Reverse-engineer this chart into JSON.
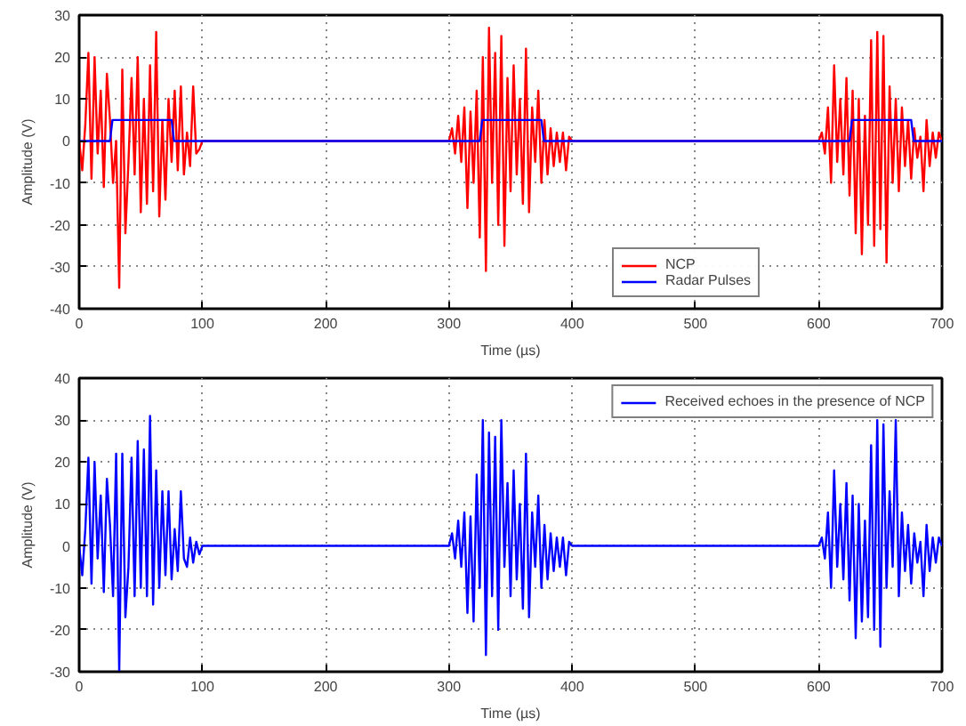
{
  "chart_data": [
    {
      "type": "line",
      "xlabel": "Time (µs)",
      "ylabel": "Amplitude (V)",
      "xlim": [
        0,
        700
      ],
      "ylim": [
        -40,
        30
      ],
      "xticks": [
        0,
        100,
        200,
        300,
        400,
        500,
        600,
        {
          "value": 700,
          "label": "700"
        }
      ],
      "yticks": [
        -40,
        -30,
        -20,
        -10,
        0,
        10,
        20,
        30
      ],
      "grid": true,
      "legend": "bottom right",
      "line_style": "solid",
      "marker": "none",
      "series": [
        {
          "name": "NCP",
          "color": "#ff0000",
          "x": [
            0,
            2.5,
            5,
            7.5,
            10,
            12.5,
            15,
            17.5,
            20,
            22.5,
            25,
            27.5,
            30,
            32.5,
            35,
            37.5,
            40,
            42.5,
            45,
            47.5,
            50,
            52.5,
            55,
            57.5,
            60,
            62.5,
            65,
            67.5,
            70,
            72.5,
            75,
            77.5,
            80,
            82.5,
            85,
            87.5,
            90,
            92.5,
            95,
            97.5,
            100,
            300,
            302.5,
            305,
            307.5,
            310,
            312.5,
            315,
            317.5,
            320,
            322.5,
            325,
            327.5,
            330,
            332.5,
            335,
            337.5,
            340,
            342.5,
            345,
            347.5,
            350,
            352.5,
            355,
            357.5,
            360,
            362.5,
            365,
            367.5,
            370,
            372.5,
            375,
            377.5,
            380,
            382.5,
            385,
            387.5,
            390,
            392.5,
            395,
            397.5,
            400,
            600,
            602.5,
            605,
            607.5,
            610,
            612.5,
            615,
            617.5,
            620,
            622.5,
            625,
            627.5,
            630,
            632.5,
            635,
            637.5,
            640,
            642.5,
            645,
            647.5,
            650,
            652.5,
            655,
            657.5,
            660,
            662.5,
            665,
            667.5,
            670,
            672.5,
            675,
            677.5,
            680,
            682.5,
            685,
            687.5,
            690,
            692.5,
            695,
            697.5,
            700
          ],
          "values": [
            0,
            -7,
            4,
            21,
            -9,
            20,
            -3,
            12,
            -11,
            16,
            5,
            -10,
            0,
            -35,
            17,
            -22,
            -5,
            15,
            -8,
            20,
            -17,
            10,
            -15,
            18,
            -12,
            26,
            -18,
            5,
            -14,
            10,
            -5,
            12,
            -7,
            13,
            -8,
            2,
            -6,
            13,
            -3,
            -2,
            0,
            0,
            3,
            -3,
            6,
            -5,
            8,
            -16,
            7,
            -10,
            12,
            -23,
            20,
            -31,
            27,
            -10,
            21,
            -20,
            25,
            -25,
            15,
            -12,
            18,
            -8,
            10,
            -15,
            22,
            -17,
            8,
            -5,
            12,
            -10,
            5,
            -8,
            3,
            -6,
            2,
            -5,
            2,
            -7,
            1,
            0,
            0,
            2,
            -3,
            8,
            -10,
            18,
            -5,
            10,
            -8,
            15,
            -13,
            12,
            -22,
            10,
            -27,
            6,
            -20,
            24,
            -25,
            26,
            -21,
            25,
            -29,
            13,
            -10,
            10,
            -12,
            8,
            -6,
            5,
            -9,
            3,
            -4,
            1,
            -12,
            5,
            -6,
            2,
            -4,
            2,
            0
          ]
        },
        {
          "name": "Radar Pulses",
          "color": "#0000ff",
          "x": [
            0,
            25,
            27,
            75,
            77,
            325,
            327,
            375,
            377,
            625,
            627,
            675,
            677,
            700
          ],
          "values": [
            0,
            0,
            5,
            5,
            0,
            0,
            5,
            5,
            0,
            0,
            5,
            5,
            0,
            0
          ]
        }
      ]
    },
    {
      "type": "line",
      "xlabel": "Time (µs)",
      "ylabel": "Amplitude (V)",
      "xlim": [
        0,
        700
      ],
      "ylim": [
        -30,
        40
      ],
      "xticks": [
        0,
        100,
        200,
        300,
        400,
        500,
        600,
        {
          "value": 700,
          "label": "700"
        }
      ],
      "yticks": [
        -30,
        -20,
        -10,
        0,
        10,
        20,
        30,
        40
      ],
      "grid": true,
      "legend": "top right",
      "line_style": "solid",
      "marker": "none",
      "series": [
        {
          "name": "Received echoes in the presence of NCP",
          "color": "#0000ff",
          "x": [
            0,
            2.5,
            5,
            7.5,
            10,
            12.5,
            15,
            17.5,
            20,
            22.5,
            25,
            27.5,
            30,
            32.5,
            35,
            37.5,
            40,
            42.5,
            45,
            47.5,
            50,
            52.5,
            55,
            57.5,
            60,
            62.5,
            65,
            67.5,
            70,
            72.5,
            75,
            77.5,
            80,
            82.5,
            85,
            87.5,
            90,
            92.5,
            95,
            97.5,
            100,
            300,
            302.5,
            305,
            307.5,
            310,
            312.5,
            315,
            317.5,
            320,
            322.5,
            325,
            327.5,
            330,
            332.5,
            335,
            337.5,
            340,
            342.5,
            345,
            347.5,
            350,
            352.5,
            355,
            357.5,
            360,
            362.5,
            365,
            367.5,
            370,
            372.5,
            375,
            377.5,
            380,
            382.5,
            385,
            387.5,
            390,
            392.5,
            395,
            397.5,
            400,
            600,
            602.5,
            605,
            607.5,
            610,
            612.5,
            615,
            617.5,
            620,
            622.5,
            625,
            627.5,
            630,
            632.5,
            635,
            637.5,
            640,
            642.5,
            645,
            647.5,
            650,
            652.5,
            655,
            657.5,
            660,
            662.5,
            665,
            667.5,
            670,
            672.5,
            675,
            677.5,
            680,
            682.5,
            685,
            687.5,
            690,
            692.5,
            695,
            697.5,
            700
          ],
          "values": [
            0,
            -7,
            4,
            21,
            -9,
            20,
            -3,
            12,
            -11,
            16,
            5,
            -12,
            22,
            -30,
            22,
            -17,
            -5,
            21,
            -12,
            25,
            -10,
            23,
            -12,
            31,
            -14,
            18,
            -10,
            13,
            -7,
            13,
            -8,
            4,
            -6,
            13,
            -3,
            -5,
            2,
            -4,
            1,
            -2,
            0,
            0,
            3,
            -3,
            6,
            -5,
            8,
            -16,
            7,
            -18,
            17,
            -10,
            30,
            -26,
            27,
            -12,
            26,
            -20,
            30,
            -5,
            15,
            -12,
            18,
            -8,
            10,
            -15,
            22,
            -17,
            8,
            -5,
            12,
            -10,
            5,
            -8,
            3,
            -6,
            2,
            -5,
            2,
            -7,
            1,
            0,
            0,
            2,
            -3,
            8,
            -10,
            18,
            -5,
            10,
            -8,
            15,
            -13,
            12,
            -22,
            10,
            -18,
            6,
            -17,
            24,
            -20,
            30,
            -24,
            29,
            -10,
            13,
            -5,
            30,
            -12,
            8,
            -6,
            5,
            -9,
            3,
            -4,
            1,
            -12,
            5,
            -6,
            2,
            -4,
            2,
            0
          ]
        }
      ]
    }
  ]
}
